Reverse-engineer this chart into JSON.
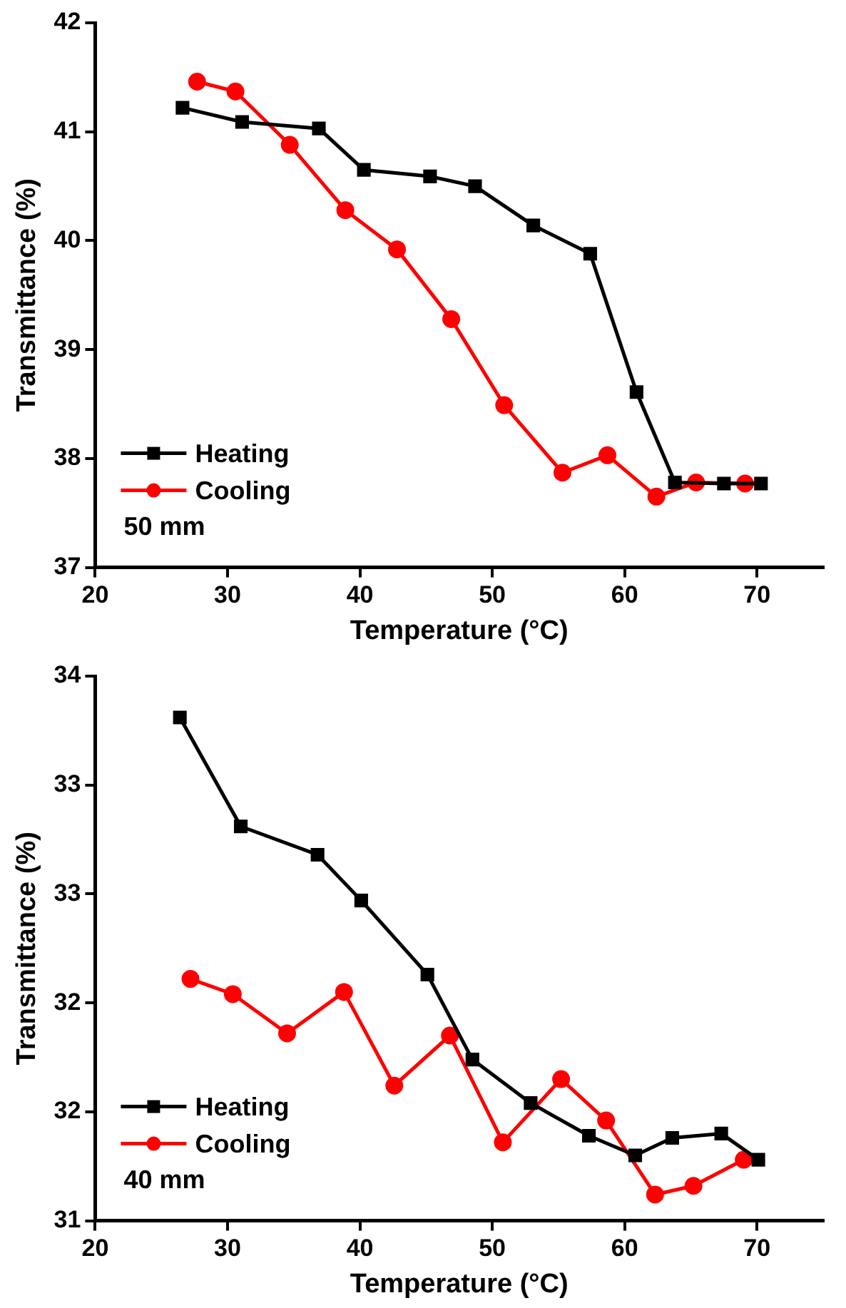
{
  "chart_data": [
    {
      "type": "line",
      "xlabel": "Temperature (°C)",
      "ylabel": "Transmittance (%)",
      "xlim": [
        20,
        75
      ],
      "xticks": [
        20,
        30,
        40,
        50,
        60,
        70
      ],
      "ylim": [
        37,
        42
      ],
      "yticks": [
        37,
        38,
        39,
        40,
        41,
        42
      ],
      "legend": "bottom left",
      "grid": false,
      "annotations": [
        "50 mm"
      ],
      "series": [
        {
          "name": "Heating",
          "color": "#000000",
          "marker": "square",
          "x": [
            26.6,
            31.1,
            36.9,
            40.3,
            45.3,
            48.7,
            53.1,
            57.4,
            60.9,
            63.8,
            67.5,
            70.3
          ],
          "values": [
            41.22,
            41.09,
            41.03,
            40.65,
            40.59,
            40.5,
            40.14,
            39.88,
            38.61,
            37.78,
            37.77,
            37.77
          ]
        },
        {
          "name": "Cooling",
          "color": "#ff0000",
          "marker": "circle",
          "x": [
            27.7,
            30.6,
            34.7,
            38.9,
            42.8,
            46.9,
            50.9,
            55.3,
            58.7,
            62.4,
            65.4,
            69.1
          ],
          "values": [
            41.46,
            41.37,
            40.88,
            40.28,
            39.92,
            39.28,
            38.49,
            37.87,
            38.03,
            37.65,
            37.78,
            37.77
          ]
        }
      ]
    },
    {
      "type": "line",
      "xlabel": "Temperature (°C)",
      "ylabel": "Transmittance (%)",
      "xlim": [
        20,
        75
      ],
      "xticks": [
        20,
        30,
        40,
        50,
        60,
        70
      ],
      "ylim": [
        31,
        33.5
      ],
      "yticks": [
        31,
        {
          "value": 31.5,
          "label": "32"
        },
        32,
        {
          "value": 32.5,
          "label": "33"
        },
        33,
        {
          "value": 33.5,
          "label": "34"
        }
      ],
      "legend": "bottom left",
      "grid": false,
      "annotations": [
        "40 mm"
      ],
      "series": [
        {
          "name": "Heating",
          "color": "#000000",
          "marker": "square",
          "x": [
            26.4,
            31.0,
            36.8,
            40.1,
            45.1,
            48.5,
            52.9,
            57.3,
            60.8,
            63.6,
            67.3,
            70.1
          ],
          "values": [
            33.31,
            32.81,
            32.68,
            32.47,
            32.13,
            31.74,
            31.54,
            31.39,
            31.3,
            31.38,
            31.4,
            31.28
          ]
        },
        {
          "name": "Cooling",
          "color": "#ff0000",
          "marker": "circle",
          "x": [
            27.2,
            30.4,
            34.5,
            38.8,
            42.6,
            46.8,
            50.8,
            55.2,
            58.6,
            62.3,
            65.2,
            69.0
          ],
          "values": [
            32.11,
            32.04,
            31.86,
            32.05,
            31.62,
            31.85,
            31.36,
            31.65,
            31.46,
            31.12,
            31.16,
            31.28
          ]
        }
      ]
    }
  ]
}
